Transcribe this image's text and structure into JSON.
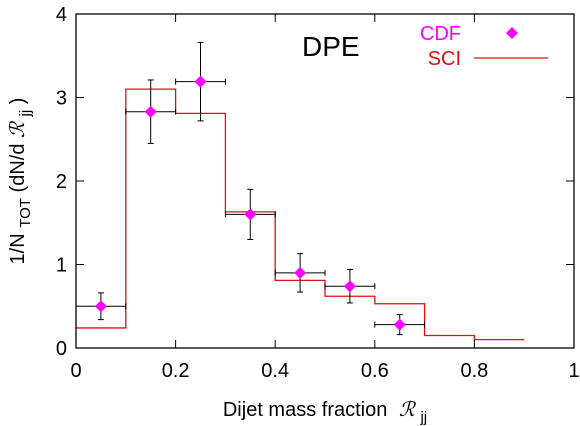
{
  "chart_data": {
    "type": "scatter",
    "title": "",
    "annotation": "DPE",
    "xlabel": "Dijet mass fraction",
    "xlabel_symbol": "ℛ",
    "xlabel_subscript": "jj",
    "ylabel_prefix": "1/N",
    "ylabel_subscript": "TOT",
    "ylabel_mid": " (dN/d",
    "ylabel_symbol": "ℛ",
    "ylabel_symbol_subscript": "jj",
    "ylabel_suffix": ")",
    "xlim": [
      0,
      1
    ],
    "ylim": [
      0,
      4
    ],
    "x_ticks": [
      0,
      0.2,
      0.4,
      0.6,
      0.8,
      1
    ],
    "x_tick_labels": [
      "0",
      "0.2",
      "0.4",
      "0.6",
      "0.8",
      "1"
    ],
    "y_ticks": [
      0,
      1,
      2,
      3,
      4
    ],
    "y_tick_labels": [
      "0",
      "1",
      "2",
      "3",
      "4"
    ],
    "grid": false,
    "legend_position": "top-right",
    "series": [
      {
        "name": "CDF",
        "kind": "points-with-errors",
        "color": "#ff00ff",
        "x": [
          0.05,
          0.15,
          0.25,
          0.35,
          0.45,
          0.55,
          0.65
        ],
        "y": [
          0.5,
          2.83,
          3.19,
          1.6,
          0.9,
          0.74,
          0.28
        ],
        "x_err": [
          0.05,
          0.05,
          0.05,
          0.05,
          0.05,
          0.05,
          0.05
        ],
        "y_err": [
          0.16,
          0.38,
          0.47,
          0.3,
          0.23,
          0.2,
          0.12
        ]
      },
      {
        "name": "SCI",
        "kind": "histogram",
        "color": "#e01010",
        "bin_edges": [
          0,
          0.1,
          0.2,
          0.3,
          0.4,
          0.5,
          0.6,
          0.7,
          0.8,
          0.9
        ],
        "values": [
          0.24,
          3.1,
          2.81,
          1.63,
          0.81,
          0.62,
          0.53,
          0.15,
          0.1
        ]
      }
    ]
  }
}
